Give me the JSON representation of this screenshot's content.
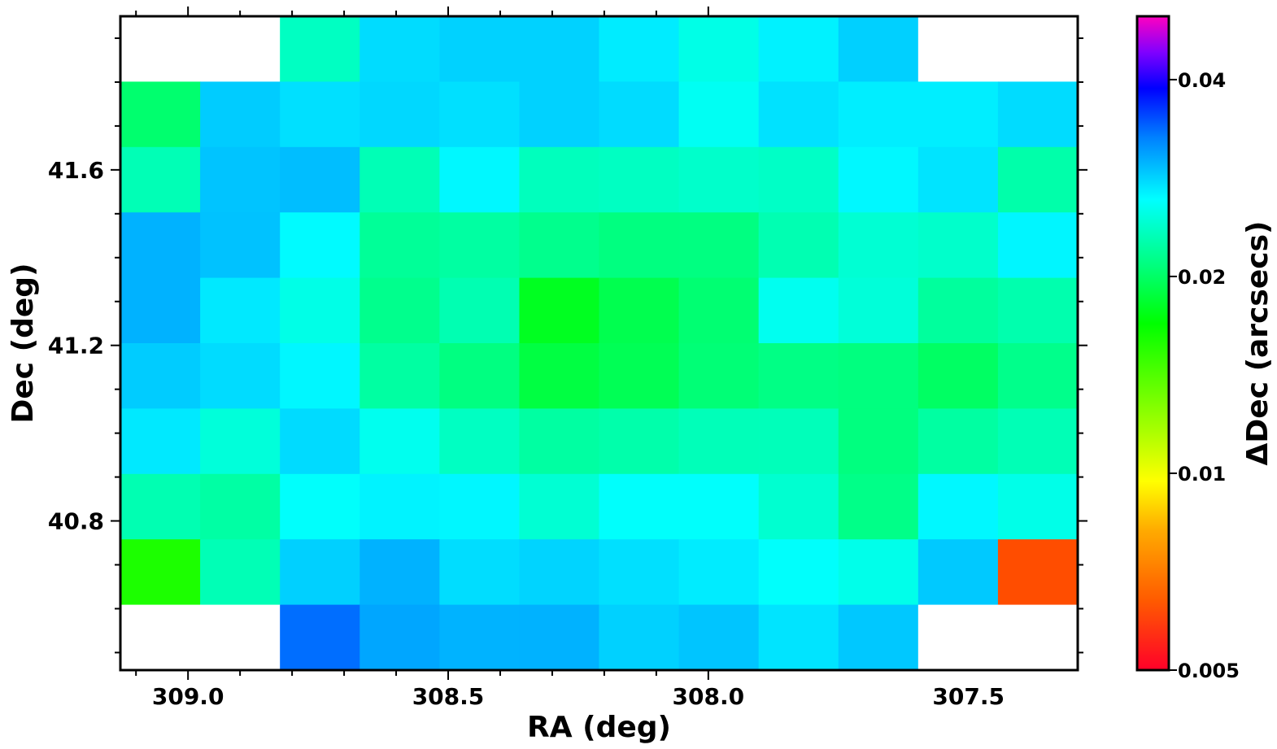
{
  "chart_data": {
    "type": "heatmap",
    "xlabel": "RA (deg)",
    "ylabel": "Dec (deg)",
    "colorbar_label": "ΔDec (arcsecs)",
    "colormap": "gist_rainbow_r",
    "xlim": [
      309.13,
      307.29
    ],
    "ylim": [
      40.46,
      41.95
    ],
    "x_ticks": [
      309.0,
      308.5,
      308.0,
      307.5
    ],
    "x_tick_labels": [
      "309.0",
      "308.5",
      "308.0",
      "307.5"
    ],
    "y_ticks": [
      40.8,
      41.2,
      41.6
    ],
    "y_tick_labels": [
      "40.8",
      "41.2",
      "41.6"
    ],
    "colorbar_ticks": [
      0.005,
      0.01,
      0.02,
      0.04
    ],
    "colorbar_tick_labels": [
      "0.005",
      "0.01",
      "0.02",
      "0.04"
    ],
    "colorbar_range": [
      0.005,
      0.05
    ],
    "colorbar_scale": "log",
    "missing_color": "#ffffff",
    "grid": false,
    "cells": [
      [
        null,
        null,
        "#00ffc2",
        "#00dcff",
        "#00d2ff",
        "#00d2ff",
        "#00ecff",
        "#00ffe7",
        "#00f2ff",
        "#00d0ff",
        null,
        null
      ],
      [
        "#00ff6e",
        "#00ccff",
        "#00e0ff",
        "#00d8ff",
        "#00e0ff",
        "#00d2ff",
        "#00dcff",
        "#00fff3",
        "#00e2ff",
        "#00eeff",
        "#00eeff",
        "#00dcff"
      ],
      [
        "#00ffb6",
        "#00c4ff",
        "#00beff",
        "#00ffb6",
        "#00f8ff",
        "#00ffbd",
        "#00ffc2",
        "#00ffcb",
        "#00ffc6",
        "#00f8ff",
        "#00e4ff",
        "#00ffaa"
      ],
      [
        "#00b2ff",
        "#00c2ff",
        "#00fbff",
        "#00ff98",
        "#00ffa2",
        "#00ff8d",
        "#00ff80",
        "#00ff81",
        "#00ffb2",
        "#00ffd3",
        "#00ffcb",
        "#00f6ff"
      ],
      [
        "#00b2ff",
        "#00e9ff",
        "#00ffe7",
        "#00ff8d",
        "#00ffb2",
        "#00ff21",
        "#00ff4f",
        "#00ff72",
        "#00fff0",
        "#00ffd9",
        "#00ff9d",
        "#00ffae"
      ],
      [
        "#00ccff",
        "#00dcff",
        "#00f7ff",
        "#00ffa2",
        "#00ff81",
        "#00ff42",
        "#00ff55",
        "#00ff76",
        "#00ff85",
        "#00ff7f",
        "#00ff63",
        "#00ff8b"
      ],
      [
        "#00e9ff",
        "#00ffda",
        "#00dbff",
        "#00ffef",
        "#00ffc2",
        "#00ffa2",
        "#00ffab",
        "#00ffb9",
        "#00ffba",
        "#00ff7f",
        "#00ffa2",
        "#00ffb6"
      ],
      [
        "#00ffb2",
        "#00ffa4",
        "#00fffc",
        "#00f3ff",
        "#00f7ff",
        "#00ffd3",
        "#00fffc",
        "#00fffc",
        "#00ffd0",
        "#00ff88",
        "#00f8ff",
        "#00ffe8"
      ],
      [
        "#1cff00",
        "#00ffb6",
        "#00d0ff",
        "#00b2ff",
        "#00ddff",
        "#00d4ff",
        "#00e0ff",
        "#00ecff",
        "#00fffc",
        "#00ffea",
        "#00c9ff",
        "#ff4d00"
      ],
      [
        null,
        null,
        "#006eff",
        "#00a6ff",
        "#00b3ff",
        "#00b2ff",
        "#00d1ff",
        "#00c5ff",
        "#00e4ff",
        "#00c8ff",
        null,
        null
      ]
    ]
  }
}
